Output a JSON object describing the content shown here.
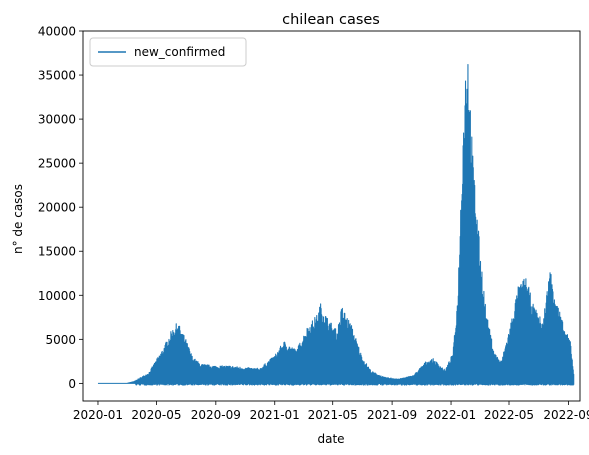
{
  "chart_data": {
    "type": "line",
    "title": "chilean cases",
    "xlabel": "date",
    "ylabel": "n° de casos",
    "xlim": [
      "2019-12-01",
      "2022-09-25"
    ],
    "ylim": [
      -2000,
      40000
    ],
    "x_ticks": [
      "2020-01",
      "2020-05",
      "2020-09",
      "2021-01",
      "2021-05",
      "2021-09",
      "2022-01",
      "2022-05",
      "2022-09"
    ],
    "y_ticks": [
      0,
      5000,
      10000,
      15000,
      20000,
      25000,
      30000,
      35000,
      40000
    ],
    "grid": false,
    "legend": {
      "position": "top-left",
      "entries": [
        "new_confirmed"
      ]
    },
    "series": [
      {
        "name": "new_confirmed",
        "color": "#1f77b4",
        "style": "daily values, dense oscillation between a low baseline and the plotted peak envelope",
        "envelope_peaks": {
          "x": [
            "2020-01-01",
            "2020-03-01",
            "2020-03-15",
            "2020-04-15",
            "2020-05-15",
            "2020-06-01",
            "2020-06-14",
            "2020-07-01",
            "2020-07-15",
            "2020-08-01",
            "2020-09-01",
            "2020-10-01",
            "2020-11-01",
            "2020-12-01",
            "2021-01-01",
            "2021-01-20",
            "2021-02-15",
            "2021-03-10",
            "2021-04-01",
            "2021-04-05",
            "2021-04-20",
            "2021-05-10",
            "2021-05-20",
            "2021-06-10",
            "2021-07-01",
            "2021-07-20",
            "2021-08-15",
            "2021-09-15",
            "2021-10-15",
            "2021-11-10",
            "2021-11-25",
            "2021-12-20",
            "2022-01-05",
            "2022-01-15",
            "2022-01-25",
            "2022-02-01",
            "2022-02-05",
            "2022-02-15",
            "2022-03-01",
            "2022-03-15",
            "2022-04-01",
            "2022-04-15",
            "2022-05-01",
            "2022-05-20",
            "2022-06-05",
            "2022-06-20",
            "2022-07-10",
            "2022-07-25",
            "2022-08-10",
            "2022-08-25",
            "2022-09-05",
            "2022-09-12"
          ],
          "y": [
            0,
            0,
            200,
            1200,
            4000,
            6000,
            7000,
            5000,
            3000,
            2200,
            2000,
            2000,
            1800,
            1700,
            3200,
            4800,
            3800,
            6500,
            8000,
            9200,
            7500,
            6000,
            8800,
            6500,
            3000,
            1400,
            700,
            500,
            900,
            2500,
            2800,
            1500,
            3500,
            10000,
            28000,
            37500,
            38500,
            26000,
            16000,
            8000,
            3500,
            2500,
            6000,
            11000,
            12200,
            9000,
            7000,
            13200,
            9000,
            6000,
            5000,
            1200
          ]
        }
      }
    ]
  }
}
